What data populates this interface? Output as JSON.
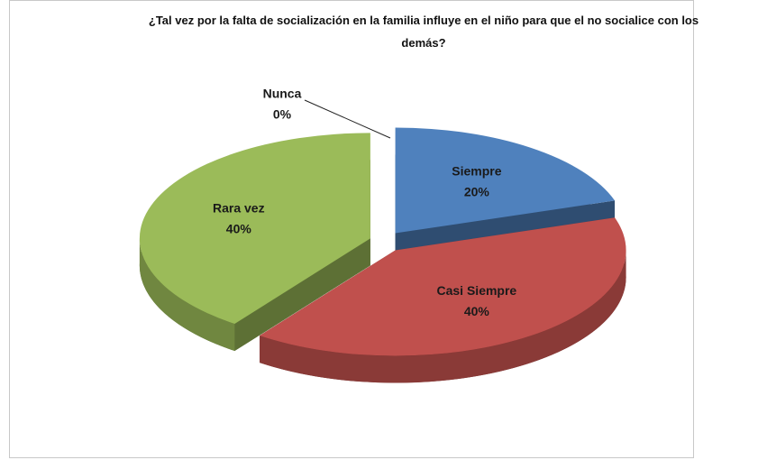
{
  "chart_data": {
    "type": "pie",
    "title": "¿Tal vez  por la falta  de socialización en la familia influye en el niño  para que el no socialice con los demás?",
    "categories": [
      "Siempre",
      "Casi Siempre",
      "Rara vez",
      "Nunca"
    ],
    "values": [
      20,
      40,
      40,
      0
    ],
    "value_labels": [
      "20%",
      "40%",
      "40%",
      "0%"
    ],
    "colors": [
      "#4f81bd",
      "#c0504d",
      "#9bbb59",
      "#8064a2"
    ],
    "exploded": true,
    "three_d": true
  }
}
